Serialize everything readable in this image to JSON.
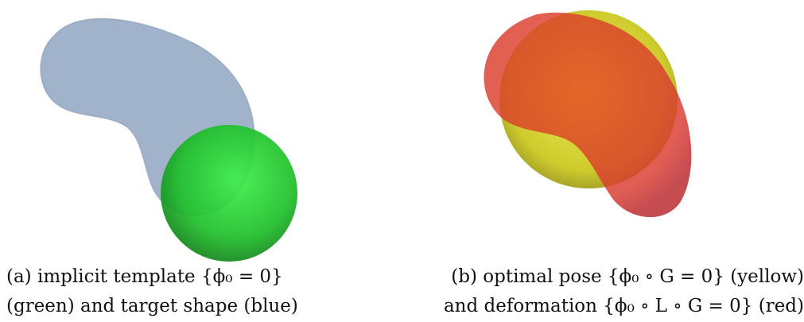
{
  "figure": {
    "panel_a": {
      "caption_line1": "(a) implicit template {ϕ₀ = 0}",
      "caption_line2": "(green) and target shape (blue)",
      "colors": {
        "template": "#22dd33",
        "target": "#8fa6c1"
      }
    },
    "panel_b": {
      "caption_line1": "(b) optimal pose {ϕ₀ ∘ G = 0} (yellow)",
      "caption_line2": "and deformation {ϕ₀ ∘ L ∘ G = 0} (red)",
      "colors": {
        "pose": "#e2e02a",
        "deformation": "#e6222a"
      }
    }
  }
}
